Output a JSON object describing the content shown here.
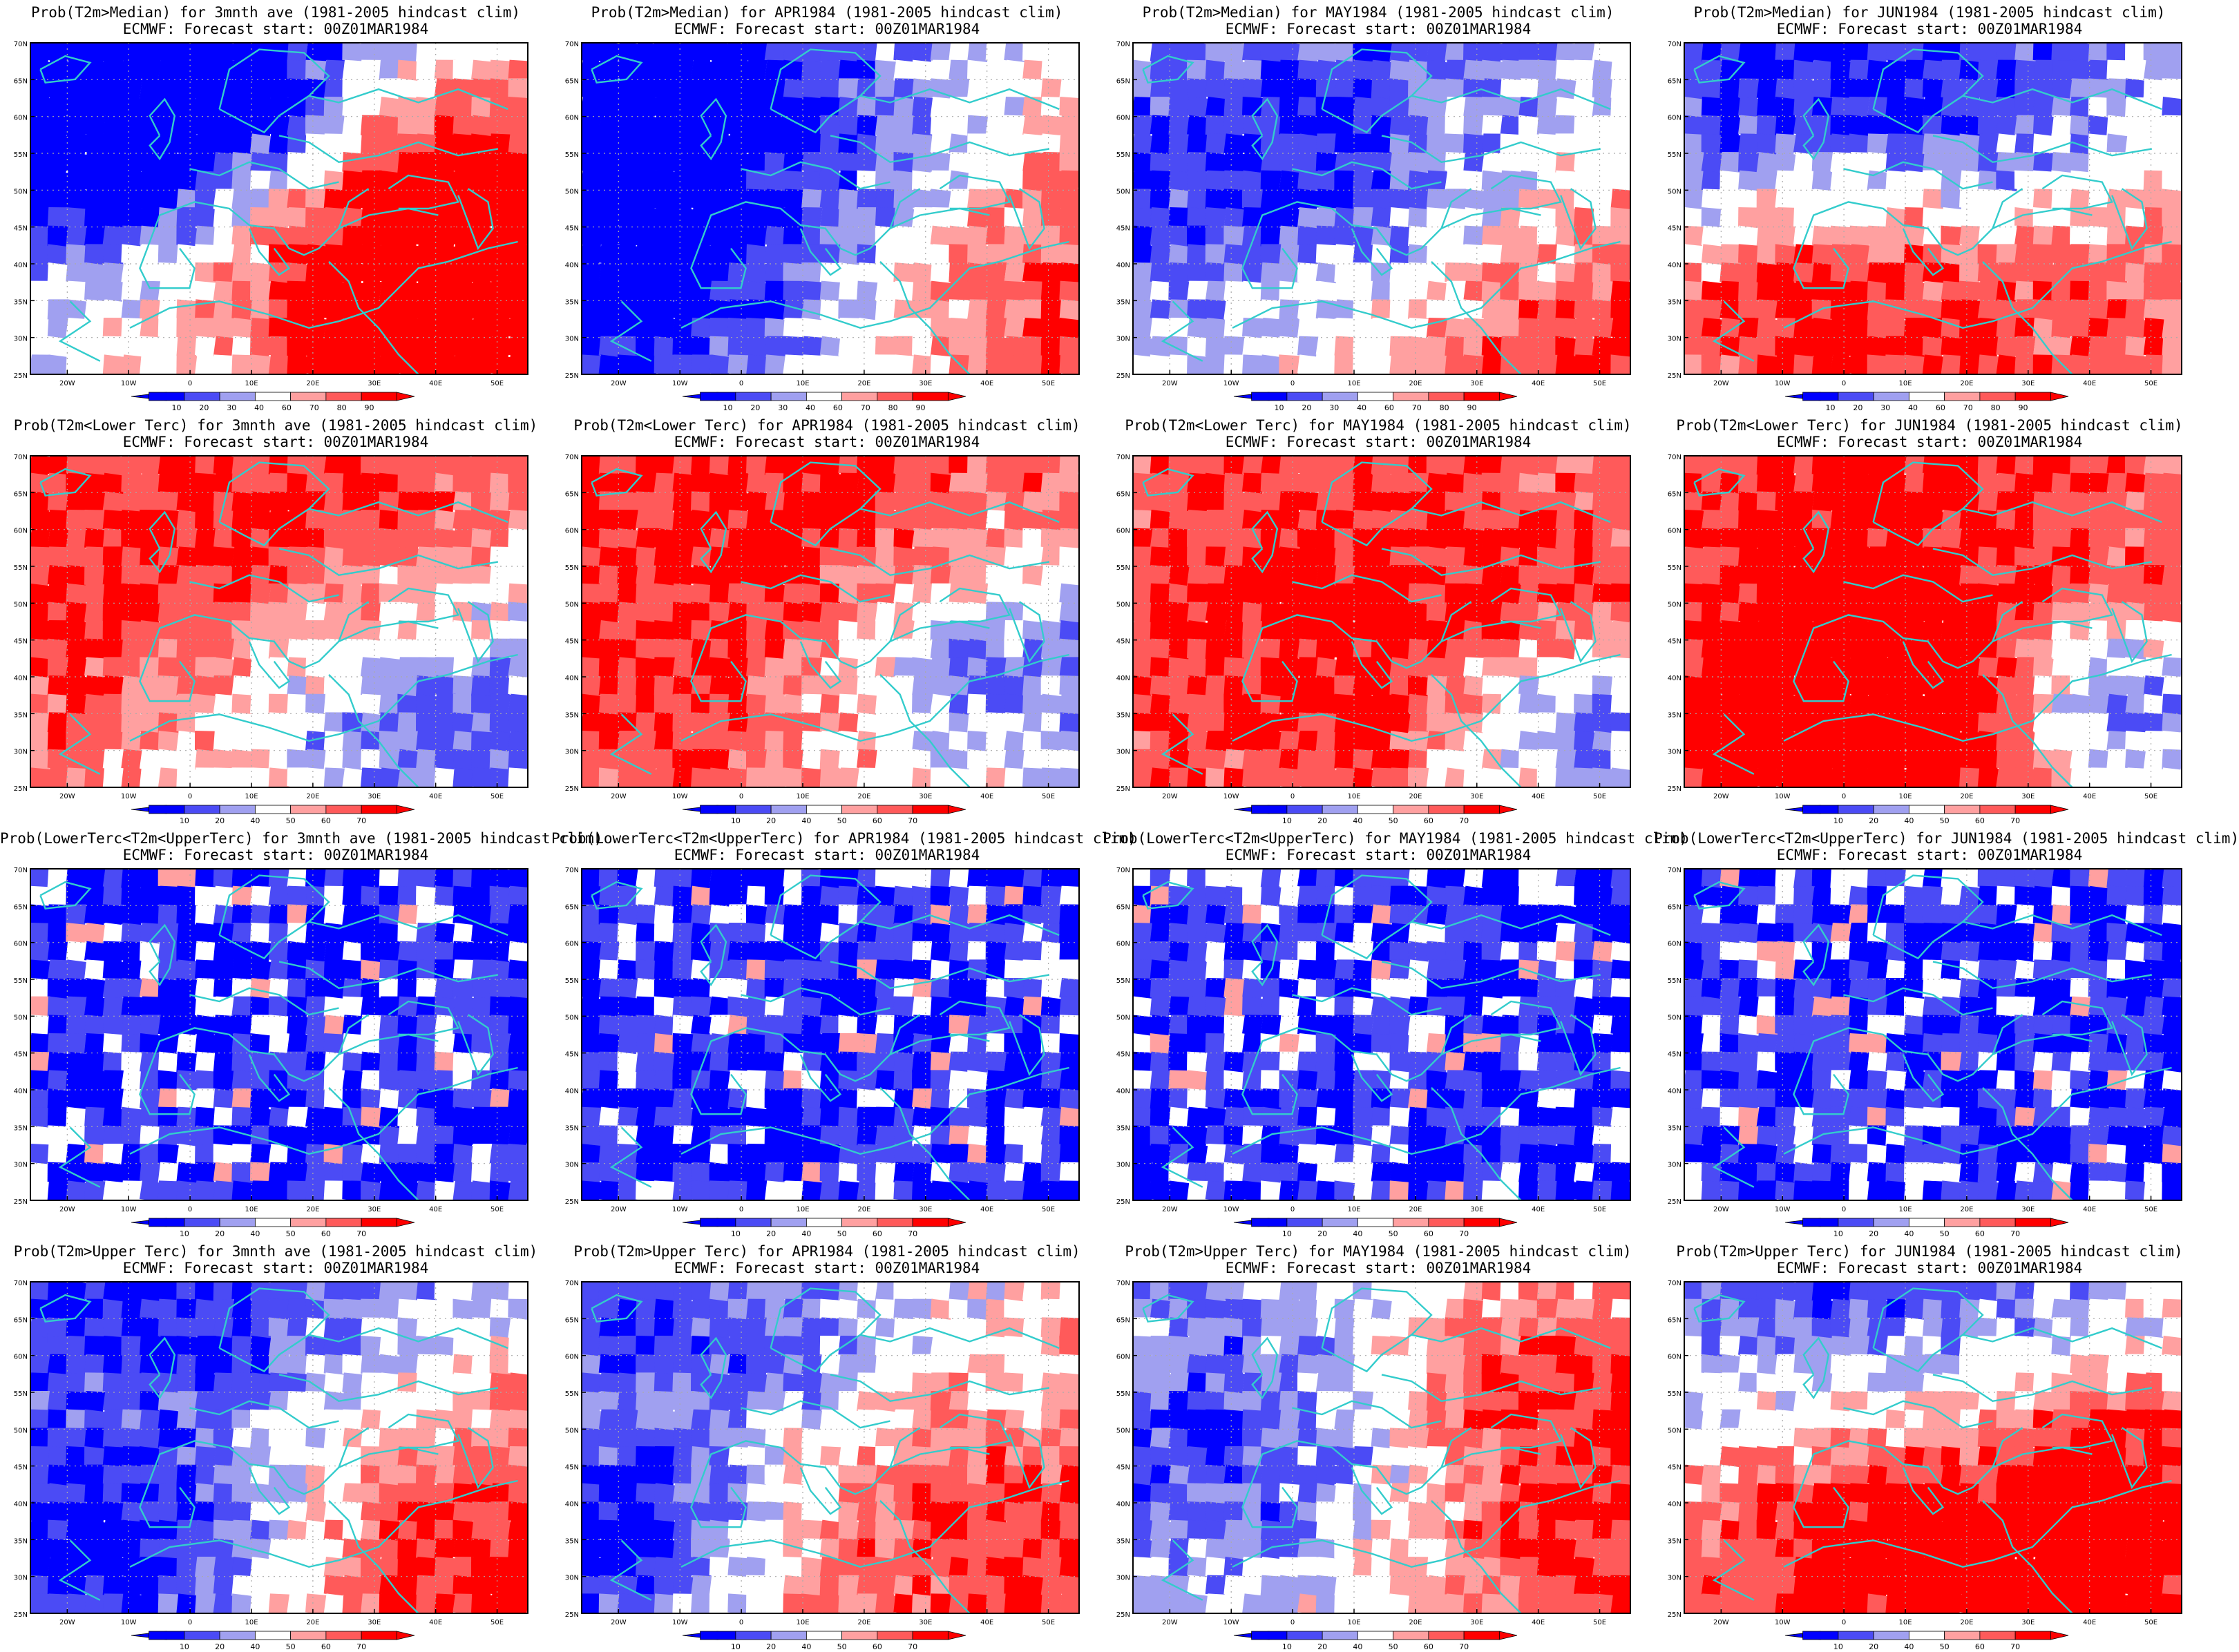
{
  "figure": {
    "panels": [
      {
        "row": 0,
        "col": 0,
        "title": "Prob(T2m>Median) for 3mnth ave (1981-2005 hindcast clim)",
        "subtitle": "ECMWF: Forecast start: 00Z01MAR1984",
        "legend_ticks": [
          "10",
          "20",
          "30",
          "40",
          "60",
          "70",
          "80",
          "90"
        ],
        "pattern": {
          "mode": "diverge",
          "blue": [
            [
              0.35,
              0.25,
              1.0
            ],
            [
              0.2,
              0.15,
              0.6
            ]
          ],
          "red": [
            [
              0.78,
              0.7,
              1.0
            ],
            [
              0.9,
              0.55,
              0.7
            ]
          ]
        }
      },
      {
        "row": 0,
        "col": 1,
        "title": "Prob(T2m>Median) for APR1984 (1981-2005 hindcast clim)",
        "subtitle": "ECMWF: Forecast start: 00Z01MAR1984",
        "legend_ticks": [
          "10",
          "20",
          "30",
          "40",
          "60",
          "70",
          "80",
          "90"
        ],
        "pattern": {
          "mode": "diverge",
          "blue": [
            [
              0.3,
              0.25,
              1.0
            ],
            [
              0.1,
              0.7,
              0.9
            ]
          ],
          "red": [
            [
              0.75,
              0.7,
              1.0
            ]
          ]
        }
      },
      {
        "row": 0,
        "col": 2,
        "title": "Prob(T2m>Median) for MAY1984 (1981-2005 hindcast clim)",
        "subtitle": "ECMWF: Forecast start: 00Z01MAR1984",
        "legend_ticks": [
          "10",
          "20",
          "30",
          "40",
          "60",
          "70",
          "80",
          "90"
        ],
        "pattern": {
          "mode": "diverge",
          "blue": [
            [
              0.4,
              0.45,
              0.9
            ]
          ],
          "red": [
            [
              0.85,
              0.85,
              0.9
            ]
          ]
        }
      },
      {
        "row": 0,
        "col": 3,
        "title": "Prob(T2m>Median) for JUN1984 (1981-2005 hindcast clim)",
        "subtitle": "ECMWF: Forecast start: 00Z01MAR1984",
        "legend_ticks": [
          "10",
          "20",
          "30",
          "40",
          "60",
          "70",
          "80",
          "90"
        ],
        "pattern": {
          "mode": "diverge",
          "blue": [
            [
              0.45,
              0.25,
              1.1
            ]
          ],
          "red": [
            [
              0.8,
              0.75,
              0.9
            ],
            [
              0.2,
              0.8,
              0.6
            ]
          ]
        }
      },
      {
        "row": 1,
        "col": 0,
        "title": "Prob(T2m<Lower Terc) for 3mnth ave (1981-2005 hindcast clim)",
        "subtitle": "ECMWF: Forecast start: 00Z01MAR1984",
        "legend_ticks": [
          "10",
          "20",
          "40",
          "50",
          "60",
          "70"
        ],
        "pattern": {
          "mode": "red",
          "blue": [
            [
              0.8,
              0.8,
              0.7
            ]
          ],
          "red": [
            [
              0.4,
              0.3,
              1.3
            ]
          ]
        }
      },
      {
        "row": 1,
        "col": 1,
        "title": "Prob(T2m<Lower Terc) for APR1984 (1981-2005 hindcast clim)",
        "subtitle": "ECMWF: Forecast start: 00Z01MAR1984",
        "legend_ticks": [
          "10",
          "20",
          "40",
          "50",
          "60",
          "70"
        ],
        "pattern": {
          "mode": "red",
          "blue": [
            [
              0.85,
              0.65,
              0.6
            ]
          ],
          "red": [
            [
              0.35,
              0.35,
              1.4
            ]
          ]
        }
      },
      {
        "row": 1,
        "col": 2,
        "title": "Prob(T2m<Lower Terc) for MAY1984 (1981-2005 hindcast clim)",
        "subtitle": "ECMWF: Forecast start: 00Z01MAR1984",
        "legend_ticks": [
          "10",
          "20",
          "40",
          "50",
          "60",
          "70"
        ],
        "pattern": {
          "mode": "red",
          "blue": [
            [
              0.88,
              0.82,
              0.4
            ]
          ],
          "red": [
            [
              0.45,
              0.45,
              1.4
            ]
          ]
        }
      },
      {
        "row": 1,
        "col": 3,
        "title": "Prob(T2m<Lower Terc) for JUN1984 (1981-2005 hindcast clim)",
        "subtitle": "ECMWF: Forecast start: 00Z01MAR1984",
        "legend_ticks": [
          "10",
          "20",
          "40",
          "50",
          "60",
          "70"
        ],
        "pattern": {
          "mode": "red",
          "blue": [
            [
              0.85,
              0.75,
              0.4
            ]
          ],
          "red": [
            [
              0.4,
              0.3,
              1.3
            ],
            [
              0.35,
              0.85,
              0.6
            ]
          ]
        }
      },
      {
        "row": 2,
        "col": 0,
        "title": "Prob(LowerTerc<T2m<UpperTerc) for 3mnth ave (1981-2005 hindcast clim)",
        "subtitle": "ECMWF: Forecast start: 00Z01MAR1984",
        "legend_ticks": [
          "10",
          "20",
          "40",
          "50",
          "60",
          "70"
        ],
        "pattern": {
          "mode": "blue",
          "blue": [
            [
              0.5,
              0.5,
              2.0
            ]
          ],
          "red": []
        }
      },
      {
        "row": 2,
        "col": 1,
        "title": "Prob(LowerTerc<T2m<UpperTerc) for APR1984 (1981-2005 hindcast clim)",
        "subtitle": "ECMWF: Forecast start: 00Z01MAR1984",
        "legend_ticks": [
          "10",
          "20",
          "40",
          "50",
          "60",
          "70"
        ],
        "pattern": {
          "mode": "blue",
          "blue": [
            [
              0.5,
              0.5,
              2.0
            ]
          ],
          "red": []
        }
      },
      {
        "row": 2,
        "col": 2,
        "title": "Prob(LowerTerc<T2m<UpperTerc) for MAY1984 (1981-2005 hindcast clim)",
        "subtitle": "ECMWF: Forecast start: 00Z01MAR1984",
        "legend_ticks": [
          "10",
          "20",
          "40",
          "50",
          "60",
          "70"
        ],
        "pattern": {
          "mode": "blue",
          "blue": [
            [
              0.5,
              0.5,
              2.0
            ]
          ],
          "red": []
        }
      },
      {
        "row": 2,
        "col": 3,
        "title": "Prob(LowerTerc<T2m<UpperTerc) for JUN1984 (1981-2005 hindcast clim)",
        "subtitle": "ECMWF: Forecast start: 00Z01MAR1984",
        "legend_ticks": [
          "10",
          "20",
          "40",
          "50",
          "60",
          "70"
        ],
        "pattern": {
          "mode": "blue",
          "blue": [
            [
              0.5,
              0.5,
              2.0
            ]
          ],
          "red": []
        }
      },
      {
        "row": 3,
        "col": 0,
        "title": "Prob(T2m>Upper Terc) for 3mnth ave (1981-2005 hindcast clim)",
        "subtitle": "ECMWF: Forecast start: 00Z01MAR1984",
        "legend_ticks": [
          "10",
          "20",
          "40",
          "50",
          "60",
          "70"
        ],
        "pattern": {
          "mode": "diverge",
          "blue": [
            [
              0.35,
              0.2,
              1.0
            ],
            [
              0.2,
              0.85,
              0.5
            ]
          ],
          "red": [
            [
              0.82,
              0.72,
              1.0
            ]
          ]
        }
      },
      {
        "row": 3,
        "col": 1,
        "title": "Prob(T2m>Upper Terc) for APR1984 (1981-2005 hindcast clim)",
        "subtitle": "ECMWF: Forecast start: 00Z01MAR1984",
        "legend_ticks": [
          "10",
          "20",
          "40",
          "50",
          "60",
          "70"
        ],
        "pattern": {
          "mode": "diverge",
          "blue": [
            [
              0.3,
              0.25,
              0.9
            ],
            [
              0.08,
              0.8,
              0.4
            ]
          ],
          "red": [
            [
              0.72,
              0.65,
              1.0
            ]
          ]
        }
      },
      {
        "row": 3,
        "col": 2,
        "title": "Prob(T2m>Upper Terc) for MAY1984 (1981-2005 hindcast clim)",
        "subtitle": "ECMWF: Forecast start: 00Z01MAR1984",
        "legend_ticks": [
          "10",
          "20",
          "40",
          "50",
          "60",
          "70"
        ],
        "pattern": {
          "mode": "diverge",
          "blue": [
            [
              0.45,
              0.5,
              0.8
            ]
          ],
          "red": [
            [
              0.85,
              0.85,
              0.8
            ],
            [
              0.75,
              0.3,
              0.6
            ]
          ]
        }
      },
      {
        "row": 3,
        "col": 3,
        "title": "Prob(T2m>Upper Terc) for JUN1984 (1981-2005 hindcast clim)",
        "subtitle": "ECMWF: Forecast start: 00Z01MAR1984",
        "legend_ticks": [
          "10",
          "20",
          "40",
          "50",
          "60",
          "70"
        ],
        "pattern": {
          "mode": "diverge",
          "blue": [
            [
              0.45,
              0.25,
              0.8
            ]
          ],
          "red": [
            [
              0.35,
              0.75,
              0.8
            ],
            [
              0.85,
              0.6,
              0.8
            ]
          ]
        }
      }
    ],
    "lat_ticks": [
      "70N",
      "65N",
      "60N",
      "55N",
      "50N",
      "45N",
      "40N",
      "35N",
      "30N",
      "25N"
    ],
    "lon_ticks": [
      "20W",
      "10W",
      "0",
      "10E",
      "20E",
      "30E",
      "40E",
      "50E"
    ],
    "colors": {
      "blue_dark": "#0000ff",
      "blue_mid": "#4b4bf5",
      "blue_light": "#a0a0f0",
      "white": "#ffffff",
      "red_light": "#ffa0a0",
      "red_mid": "#ff5a5a",
      "red_dark": "#ff0000",
      "coastline": "#33cccc",
      "frame": "#000000",
      "grid": "#aaaaaa"
    }
  }
}
